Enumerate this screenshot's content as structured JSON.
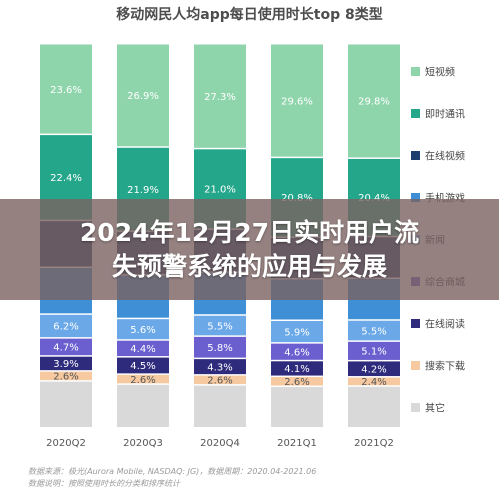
{
  "chart_data": {
    "type": "bar",
    "stacked": true,
    "title": "移动网民人均app每日使用时长top 8类型",
    "categories": [
      "2020Q2",
      "2020Q3",
      "2020Q4",
      "2021Q1",
      "2021Q2"
    ],
    "series": [
      {
        "name": "其它",
        "color": "#d9d9d9",
        "values": [
          null,
          null,
          null,
          null,
          null
        ],
        "labels": [
          "",
          "",
          "",
          "",
          ""
        ]
      },
      {
        "name": "搜索下载",
        "color": "#f7c9a0",
        "values": [
          2.6,
          2.6,
          2.6,
          2.6,
          2.4
        ],
        "labels": [
          "2.6%",
          "2.6%",
          "2.6%",
          "2.6%",
          "2.4%"
        ]
      },
      {
        "name": "在线阅读",
        "color": "#2e2a7c",
        "values": [
          3.9,
          4.5,
          4.3,
          4.1,
          4.2
        ],
        "labels": [
          "3.9%",
          "4.5%",
          "4.3%",
          "4.1%",
          "4.2%"
        ]
      },
      {
        "name": "综合商城",
        "color": "#6b5fd0",
        "values": [
          4.7,
          4.4,
          5.8,
          4.6,
          5.1
        ],
        "labels": [
          "4.7%",
          "4.4%",
          "5.8%",
          "4.6%",
          "5.1%"
        ]
      },
      {
        "name": "新闻",
        "color": "#6aa8e8",
        "values": [
          6.2,
          5.6,
          5.5,
          5.9,
          5.5
        ],
        "labels": [
          "6.2%",
          "5.6%",
          "5.5%",
          "5.9%",
          "5.5%"
        ]
      },
      {
        "name": "手机游戏",
        "color": "#3f8fd6",
        "values": [
          null,
          null,
          null,
          null,
          null
        ],
        "labels": [
          "",
          "",
          "",
          "",
          ""
        ]
      },
      {
        "name": "在线视频",
        "color": "#1c3f6e",
        "values": [
          null,
          null,
          null,
          null,
          null
        ],
        "labels": [
          "",
          "",
          "",
          "",
          ""
        ]
      },
      {
        "name": "即时通讯",
        "color": "#24a68a",
        "values": [
          22.4,
          21.9,
          21.0,
          20.8,
          20.4
        ],
        "labels": [
          "22.4%",
          "21.9%",
          "21.0%",
          "20.8%",
          "20.4%"
        ]
      },
      {
        "name": "短视频",
        "color": "#8fd5ac",
        "values": [
          23.6,
          26.9,
          27.3,
          29.6,
          29.8
        ],
        "labels": [
          "23.6%",
          "26.9%",
          "27.3%",
          "29.6%",
          "29.8%"
        ]
      }
    ],
    "ylim": [
      0,
      100
    ],
    "grid": false,
    "legend_position": "right"
  },
  "source": {
    "line1": "数据来源：极光(Aurora Mobile, NASDAQ: JG)，数据周期：2020.04-2021.06",
    "line2": "数据说明：按照使用时长的分类和排序统计"
  },
  "overlay": {
    "line1": "2024年12月27日实时用户流",
    "line2": "失预警系统的应用与发展"
  }
}
